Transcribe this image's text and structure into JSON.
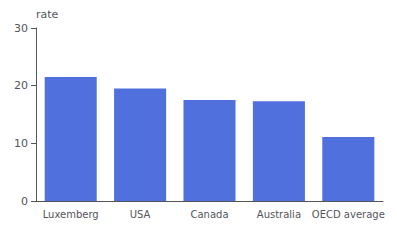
{
  "chart_data": {
    "type": "bar",
    "categories": [
      "Luxemberg",
      "USA",
      "Canada",
      "Australia",
      "OECD average"
    ],
    "values": [
      21.5,
      19.5,
      17.5,
      17.3,
      11.1
    ],
    "ylabel": "rate",
    "ylim": [
      0,
      30
    ],
    "yticks": [
      0,
      10,
      20,
      30
    ],
    "grid": false
  }
}
